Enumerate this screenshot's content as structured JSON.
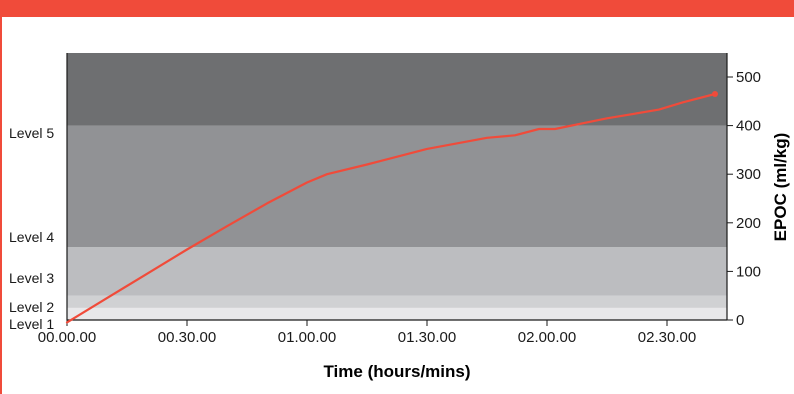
{
  "chart_data": {
    "type": "line",
    "title": "",
    "xlabel": "Time (hours/mins)",
    "ylabel": "EPOC (ml/kg)",
    "x_tick_labels": [
      "00.00.00",
      "00.30.00",
      "01.00.00",
      "01.30.00",
      "02.00.00",
      "02.30.00"
    ],
    "x_tick_minutes": [
      0,
      30,
      60,
      90,
      120,
      150
    ],
    "xlim_minutes": [
      0,
      165
    ],
    "y_ticks": [
      0,
      100,
      200,
      300,
      400,
      500
    ],
    "ylim": [
      0,
      550
    ],
    "y_axis_position": "right",
    "grid": false,
    "bands": [
      {
        "name": "Level 1",
        "min": 0,
        "max": 25,
        "color": "#e8e8ea"
      },
      {
        "name": "Level 2",
        "min": 25,
        "max": 50,
        "color": "#d0d1d3"
      },
      {
        "name": "Level 3",
        "min": 50,
        "max": 150,
        "color": "#bcbdc0"
      },
      {
        "name": "Level 4",
        "min": 150,
        "max": 400,
        "color": "#919295"
      },
      {
        "name": "Level 5",
        "min": 400,
        "max": 550,
        "color": "#6e6f71"
      }
    ],
    "series": [
      {
        "color": "#f04b3a",
        "x_minutes": [
          0,
          10,
          20,
          30,
          40,
          50,
          60,
          65,
          75,
          90,
          105,
          112,
          118,
          122,
          135,
          148,
          154,
          162
        ],
        "values": [
          -5,
          45,
          95,
          145,
          193,
          240,
          283,
          300,
          320,
          352,
          375,
          380,
          393,
          393,
          415,
          433,
          448,
          465
        ]
      }
    ]
  }
}
